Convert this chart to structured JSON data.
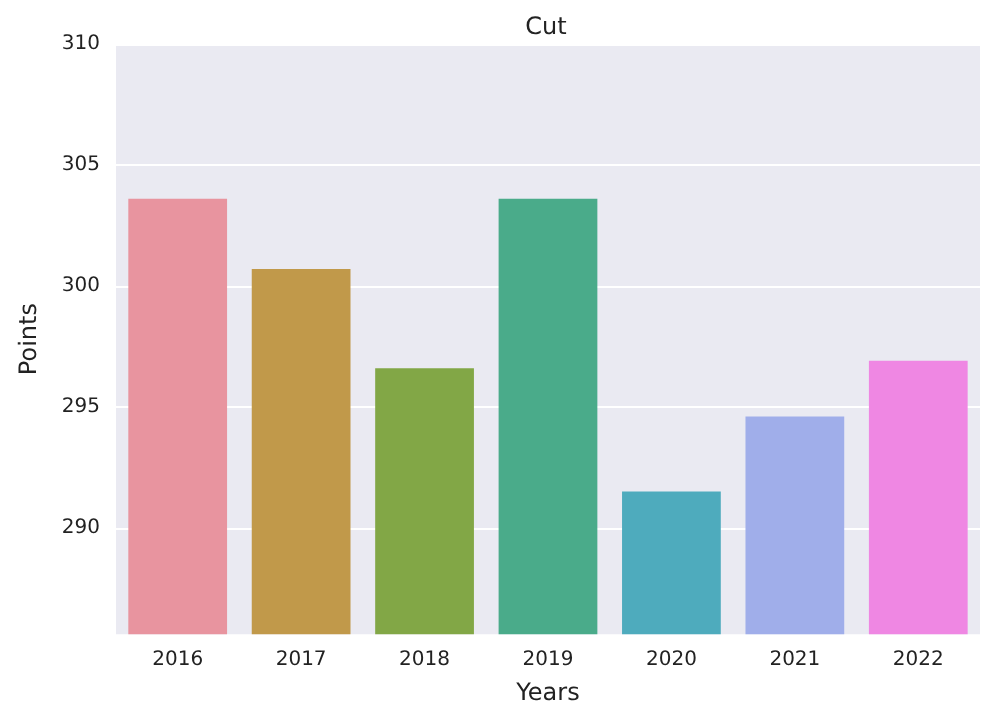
{
  "chart_data": {
    "type": "bar",
    "title": "Cut",
    "xlabel": "Years",
    "ylabel": "Points",
    "categories": [
      "2016",
      "2017",
      "2018",
      "2019",
      "2020",
      "2021",
      "2022"
    ],
    "values": [
      303.6,
      300.7,
      296.6,
      303.6,
      291.5,
      294.6,
      296.9
    ],
    "colors": [
      "#e8949f",
      "#c1994a",
      "#82a746",
      "#4aab8a",
      "#4eabbd",
      "#a0aeea",
      "#ef87e3"
    ],
    "ylim": [
      285.6,
      310
    ],
    "yticks": [
      290,
      295,
      300,
      305,
      310
    ],
    "grid": "y"
  }
}
